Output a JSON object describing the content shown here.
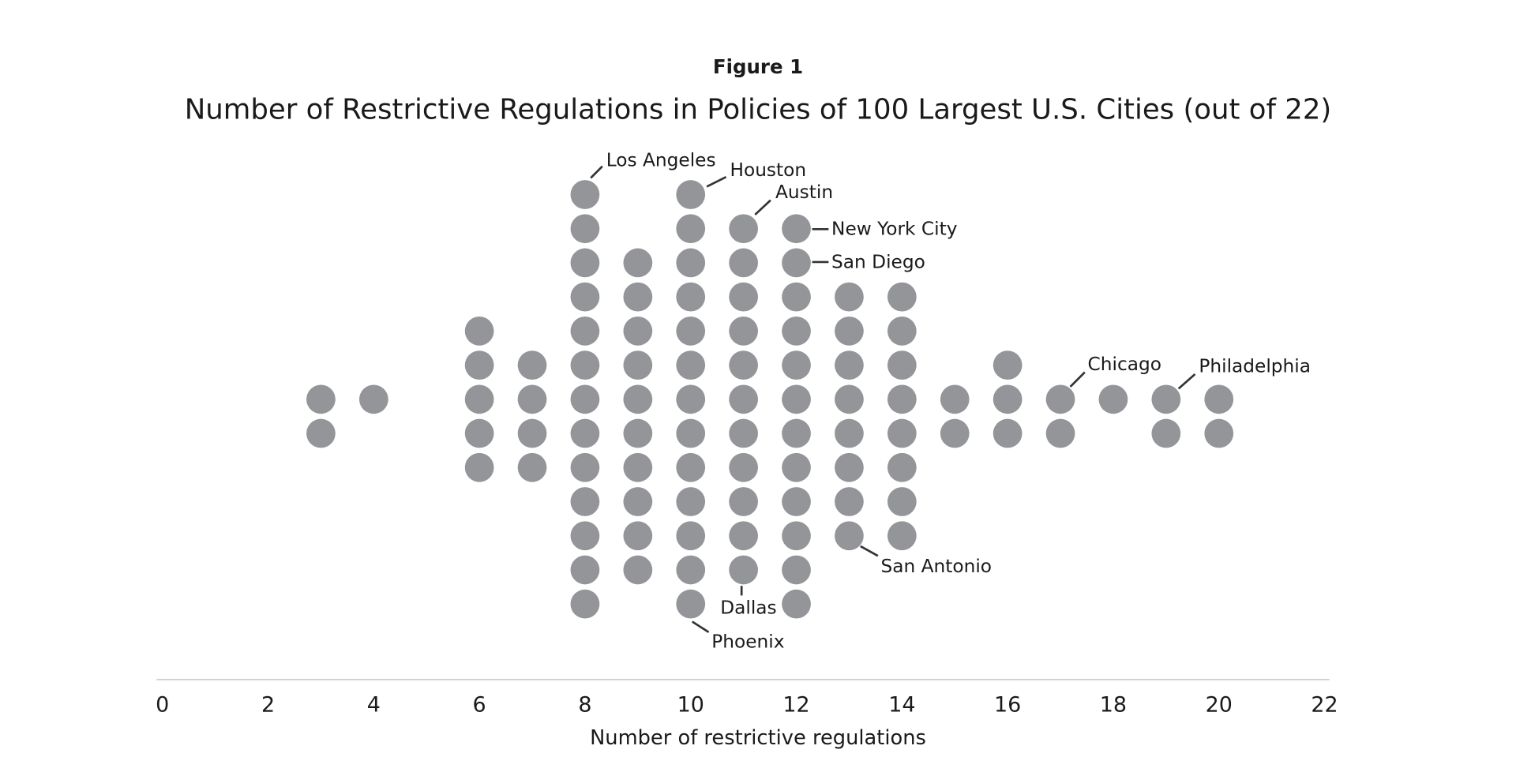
{
  "chart_data": {
    "type": "dot-plot",
    "figure_label": "Figure 1",
    "title": "Number of Restrictive Regulations in Policies of 100 Largest U.S. Cities (out of 22)",
    "xlabel": "Number of restrictive regulations",
    "xlim": [
      0,
      22
    ],
    "xticks": [
      0,
      2,
      4,
      6,
      8,
      10,
      12,
      14,
      16,
      18,
      20,
      22
    ],
    "grid": false,
    "dot_color": "#939598",
    "values": [
      3,
      4,
      6,
      7,
      8,
      9,
      10,
      11,
      12,
      13,
      14,
      15,
      16,
      17,
      18,
      19,
      20
    ],
    "counts": [
      2,
      1,
      5,
      4,
      13,
      10,
      13,
      11,
      12,
      8,
      8,
      2,
      3,
      2,
      1,
      2,
      2
    ],
    "annotations": [
      {
        "city": "Los Angeles",
        "value": 8,
        "position": "top"
      },
      {
        "city": "Houston",
        "value": 10,
        "position": "top"
      },
      {
        "city": "Austin",
        "value": 11,
        "position": "top"
      },
      {
        "city": "New York City",
        "value": 12,
        "position": "top"
      },
      {
        "city": "San Diego",
        "value": 12,
        "position": "second from top"
      },
      {
        "city": "San Antonio",
        "value": 13,
        "position": "bottom"
      },
      {
        "city": "Dallas",
        "value": 11,
        "position": "bottom"
      },
      {
        "city": "Phoenix",
        "value": 10,
        "position": "bottom"
      },
      {
        "city": "Chicago",
        "value": 17,
        "position": "top"
      },
      {
        "city": "Philadelphia",
        "value": 19,
        "position": "top"
      }
    ]
  }
}
